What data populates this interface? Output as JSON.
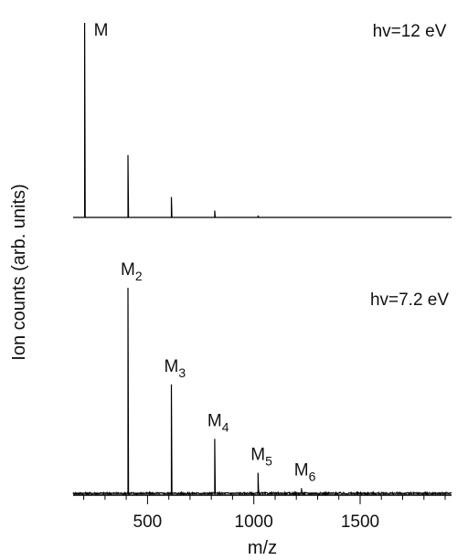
{
  "chart_data": {
    "type": "line",
    "xlabel": "m/z",
    "ylabel": "Ion counts (arb. units)",
    "xlim": [
      150,
      1930
    ],
    "x_ticks": [
      500,
      1000,
      1500
    ],
    "x_tick_labels": [
      "500",
      "1000",
      "1500"
    ],
    "x_minor_tick_step": 100,
    "line_color": "#000000",
    "panels": [
      {
        "annotation": "hv=12 eV",
        "noise": 0.0,
        "ylim": [
          0,
          100
        ],
        "peaks": [
          {
            "x": 204,
            "y": 100,
            "label": "M",
            "sub": ""
          },
          {
            "x": 408,
            "y": 32,
            "label": "",
            "sub": ""
          },
          {
            "x": 612,
            "y": 10.5,
            "label": "",
            "sub": ""
          },
          {
            "x": 816,
            "y": 3.5,
            "label": "",
            "sub": ""
          },
          {
            "x": 1020,
            "y": 1.0,
            "label": "",
            "sub": ""
          }
        ]
      },
      {
        "annotation": "hv=7.2 eV",
        "noise": 0.8,
        "ylim": [
          0,
          100
        ],
        "peaks": [
          {
            "x": 408,
            "y": 100,
            "label": "M",
            "sub": "2"
          },
          {
            "x": 612,
            "y": 53,
            "label": "M",
            "sub": "3"
          },
          {
            "x": 816,
            "y": 26.5,
            "label": "M",
            "sub": "4"
          },
          {
            "x": 1020,
            "y": 10,
            "label": "M",
            "sub": "5"
          },
          {
            "x": 1224,
            "y": 2.5,
            "label": "M",
            "sub": "6"
          }
        ]
      }
    ]
  }
}
